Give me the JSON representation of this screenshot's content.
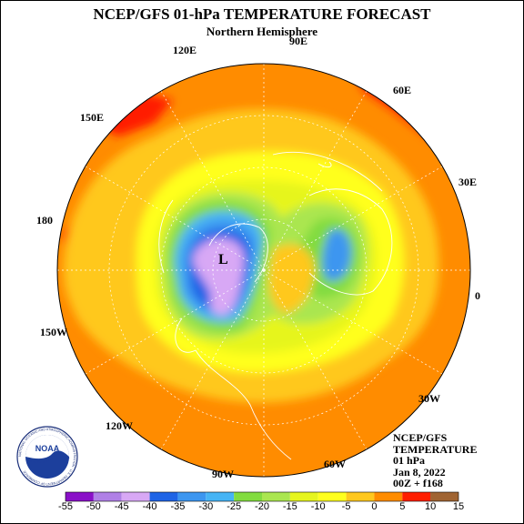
{
  "title": "NCEP/GFS 01-hPa TEMPERATURE FORECAST",
  "subtitle": "Northern Hemisphere",
  "longitudes": {
    "e90": "90E",
    "e60": "60E",
    "e30": "30E",
    "zero": "0",
    "w30": "30W",
    "w60": "60W",
    "w90": "90W",
    "w120": "120W",
    "w150": "150W",
    "d180": "180",
    "e150": "150E",
    "e120": "120E"
  },
  "low_marker": "L",
  "info": {
    "line1": "NCEP/GFS",
    "line2": "TEMPERATURE",
    "line3": "01 hPa",
    "line4": "Jan 8, 2022",
    "line5": "00Z + f168"
  },
  "colorbar": {
    "labels": [
      "-55",
      "-50",
      "-45",
      "-40",
      "-35",
      "-30",
      "-25",
      "-20",
      "-15",
      "-10",
      "-5",
      "0",
      "5",
      "10",
      "15"
    ],
    "colors": [
      "#8a10c8",
      "#b080e6",
      "#d8a8f5",
      "#1e64e6",
      "#3c96f0",
      "#46b4f5",
      "#82dc40",
      "#aae650",
      "#e6f51e",
      "#ffff1e",
      "#ffc81e",
      "#ff8c00",
      "#ff1e00",
      "#d21e14",
      "#a06432"
    ]
  },
  "logo": {
    "name": "NOAA",
    "ring_text": "NATIONAL OCEANIC AND ATMOSPHERIC ADMINISTRATION · U.S. DEPARTMENT OF COMMERCE"
  },
  "colors": {
    "grid": "#ffffff",
    "coast": "#ffffff",
    "outline": "#000000"
  }
}
